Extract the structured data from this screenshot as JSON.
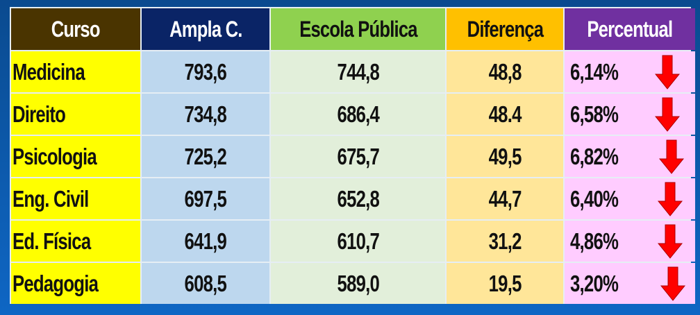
{
  "table": {
    "headers": [
      "Curso",
      "Ampla C.",
      "Escola Pública",
      "Diferença",
      "Percentual"
    ],
    "header_colors": [
      "#4a3400",
      "#0a2466",
      "#8fd14f",
      "#ffc000",
      "#7030a0"
    ],
    "rows": [
      {
        "curso": "Medicina",
        "ampla": "793,6",
        "escola": "744,8",
        "diferenca": "48,8",
        "percentual": "6,14%",
        "trend": "down-arrow-icon"
      },
      {
        "curso": "Direito",
        "ampla": "734,8",
        "escola": "686,4",
        "diferenca": "48.4",
        "percentual": "6,58%",
        "trend": "down-arrow-icon"
      },
      {
        "curso": "Psicologia",
        "ampla": "725,2",
        "escola": "675,7",
        "diferenca": "49,5",
        "percentual": "6,82%",
        "trend": "down-arrow-icon"
      },
      {
        "curso": "Eng. Civil",
        "ampla": "697,5",
        "escola": "652,8",
        "diferenca": "44,7",
        "percentual": "6,40%",
        "trend": "down-arrow-icon"
      },
      {
        "curso": "Ed. Física",
        "ampla": "641,9",
        "escola": "610,7",
        "diferenca": "31,2",
        "percentual": "4,86%",
        "trend": "down-arrow-icon"
      },
      {
        "curso": "Pedagogia",
        "ampla": "608,5",
        "escola": "589,0",
        "diferenca": "19,5",
        "percentual": "3,20%",
        "trend": "down-arrow-icon"
      }
    ],
    "arrow_color": "#ff0000"
  }
}
